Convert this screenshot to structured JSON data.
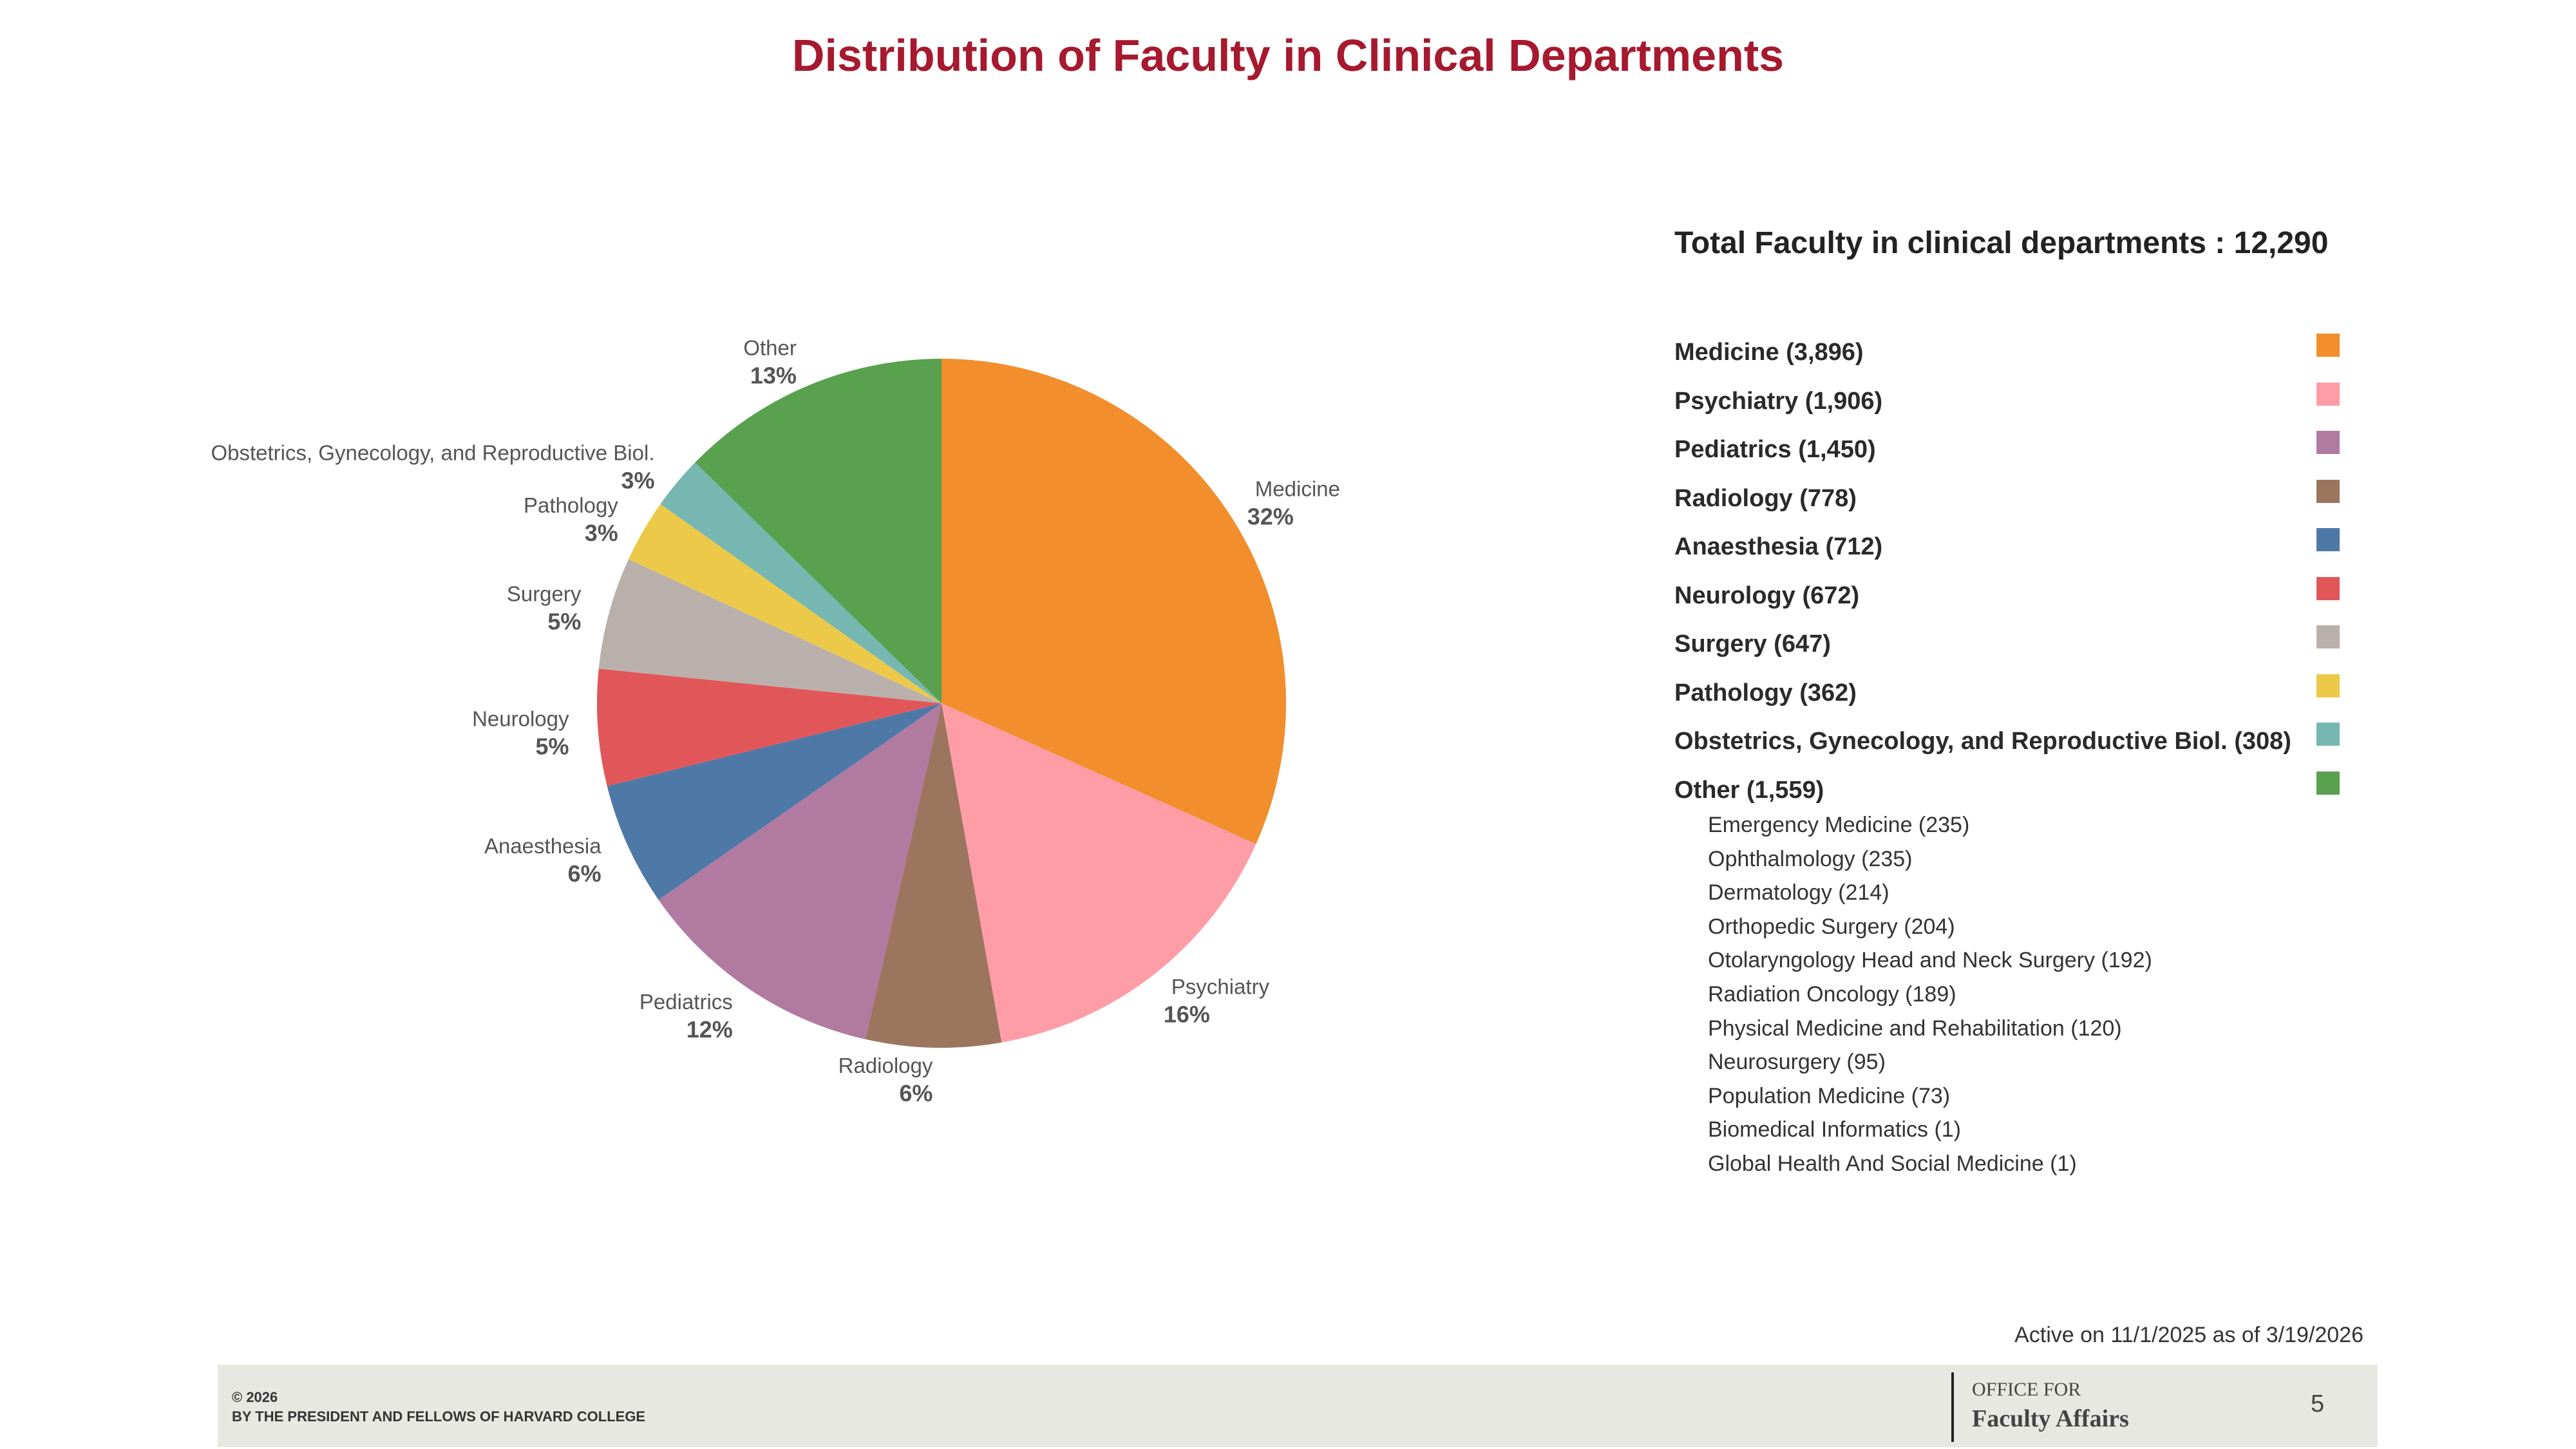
{
  "title": "Distribution of Faculty in Clinical Departments",
  "total_label": "Total Faculty in clinical departments : 12,290",
  "legend": [
    {
      "label": "Medicine (3,896)",
      "color": "#f28e2c"
    },
    {
      "label": "Psychiatry (1,906)",
      "color": "#ff9da7"
    },
    {
      "label": "Pediatrics (1,450)",
      "color": "#b07aa1"
    },
    {
      "label": "Radiology (778)",
      "color": "#9c755f"
    },
    {
      "label": "Anaesthesia (712)",
      "color": "#4e79a7"
    },
    {
      "label": "Neurology (672)",
      "color": "#e15759"
    },
    {
      "label": "Surgery (647)",
      "color": "#bab0ab"
    },
    {
      "label": "Pathology (362)",
      "color": "#edc949"
    },
    {
      "label": "Obstetrics, Gynecology, and Reproductive Biol. (308)",
      "color": "#76b7b2"
    },
    {
      "label": "Other (1,559)",
      "color": "#59a14f"
    }
  ],
  "other_breakdown": [
    "Emergency Medicine (235)",
    "Ophthalmology (235)",
    "Dermatology (214)",
    "Orthopedic Surgery (204)",
    "Otolaryngology Head and Neck Surgery (192)",
    "Radiation Oncology (189)",
    "Physical Medicine and Rehabilitation (120)",
    "Neurosurgery (95)",
    "Population Medicine (73)",
    "Biomedical Informatics (1)",
    "Global Health And Social Medicine (1)"
  ],
  "active_note": "Active on 11/1/2025 as of 3/19/2026",
  "footer": {
    "copyright_line1": "© 2026",
    "copyright_line2": "BY THE PRESIDENT AND FELLOWS OF HARVARD COLLEGE",
    "office_line1": "OFFICE FOR",
    "office_line2": "Faculty Affairs",
    "page_number": "5"
  },
  "chart_data": {
    "type": "pie",
    "title": "Distribution of Faculty in Clinical Departments",
    "total": 12290,
    "slices": [
      {
        "name": "Medicine",
        "value": 3896,
        "pct_label": "32%",
        "color": "#f28e2c"
      },
      {
        "name": "Psychiatry",
        "value": 1906,
        "pct_label": "16%",
        "color": "#ff9da7"
      },
      {
        "name": "Radiology",
        "value": 778,
        "pct_label": "6%",
        "color": "#9c755f"
      },
      {
        "name": "Pediatrics",
        "value": 1450,
        "pct_label": "12%",
        "color": "#b07aa1"
      },
      {
        "name": "Anaesthesia",
        "value": 712,
        "pct_label": "6%",
        "color": "#4e79a7"
      },
      {
        "name": "Neurology",
        "value": 672,
        "pct_label": "5%",
        "color": "#e15759"
      },
      {
        "name": "Surgery",
        "value": 647,
        "pct_label": "5%",
        "color": "#bab0ab"
      },
      {
        "name": "Pathology",
        "value": 362,
        "pct_label": "3%",
        "color": "#edc949"
      },
      {
        "name": "Obstetrics, Gynecology, and Reproductive Biol.",
        "value": 308,
        "pct_label": "3%",
        "color": "#76b7b2"
      },
      {
        "name": "Other",
        "value": 1559,
        "pct_label": "13%",
        "color": "#59a14f"
      }
    ],
    "direction": "clockwise from 12 o'clock",
    "legend_position": "right"
  }
}
